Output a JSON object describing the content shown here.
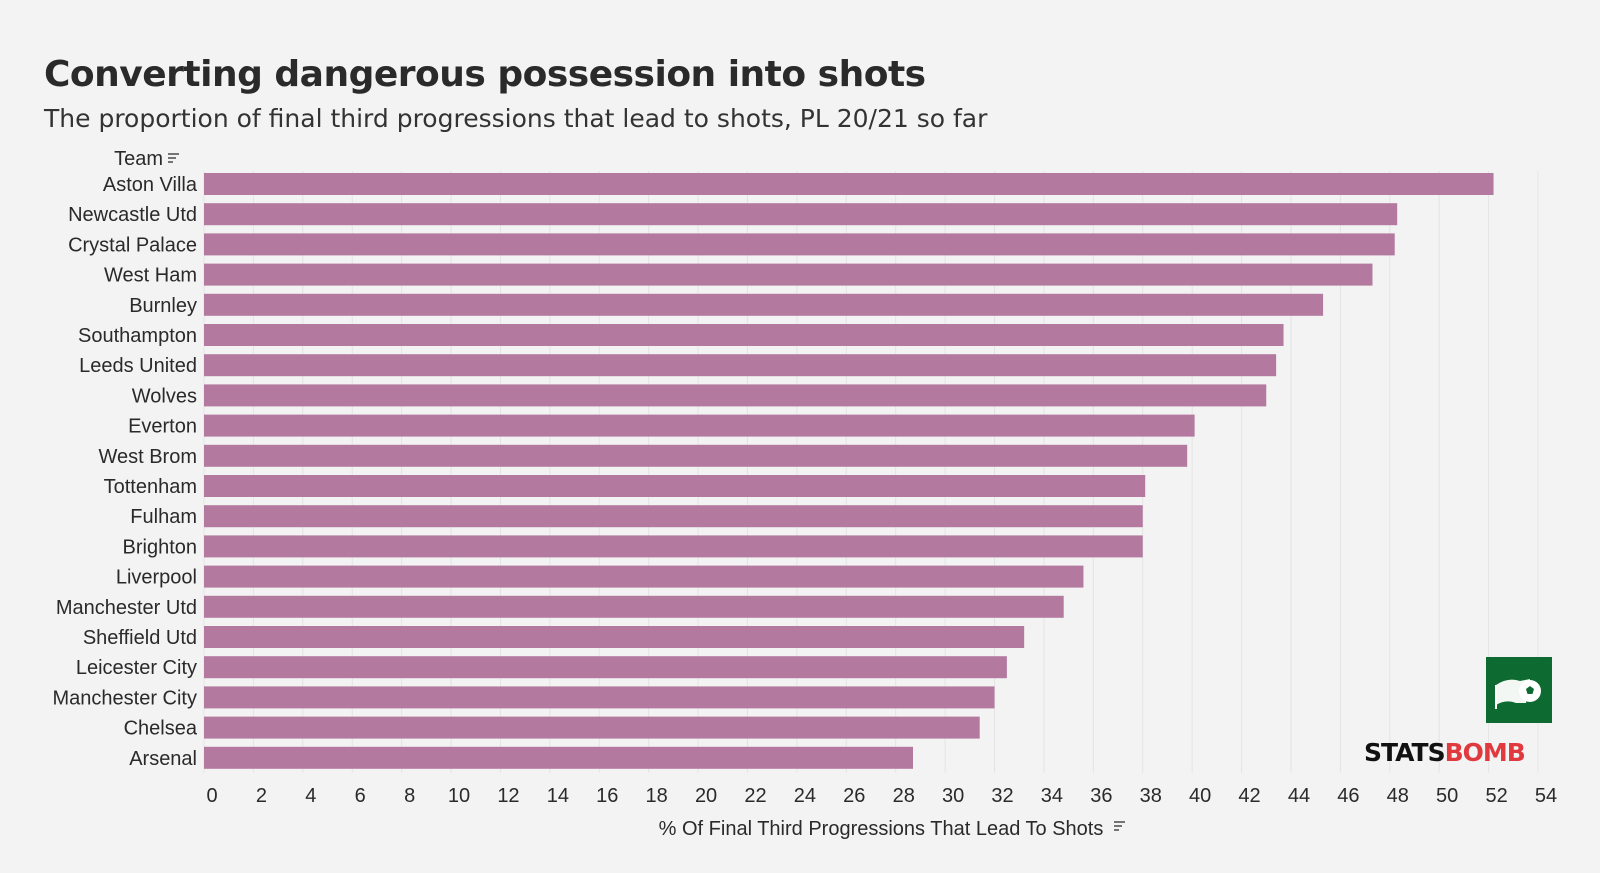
{
  "title": "Converting dangerous possession into shots",
  "subtitle": "The proportion of final third progressions that lead to shots, PL 20/21 so far",
  "brand": {
    "name_part1": "STATS",
    "name_part2": "BOMB"
  },
  "colors": {
    "bar": "#b3799f",
    "background": "#f3f3f3",
    "logo_green": "#0d6b31",
    "brand_red": "#e0393e"
  },
  "icons": {
    "sort": "sort-icon",
    "logo": "statsbomb-flag-ball-logo"
  },
  "chart_data": {
    "type": "bar",
    "orientation": "horizontal",
    "y_header": "Team",
    "xlabel": "% Of Final Third Progressions That Lead To Shots",
    "xlim": [
      0,
      54
    ],
    "xticks": [
      0,
      2,
      4,
      6,
      8,
      10,
      12,
      14,
      16,
      18,
      20,
      22,
      24,
      26,
      28,
      30,
      32,
      34,
      36,
      38,
      40,
      42,
      44,
      46,
      48,
      50,
      52,
      54
    ],
    "grid": "vertical",
    "categories": [
      "Aston Villa",
      "Newcastle Utd",
      "Crystal Palace",
      "West Ham",
      "Burnley",
      "Southampton",
      "Leeds United",
      "Wolves",
      "Everton",
      "West Brom",
      "Tottenham",
      "Fulham",
      "Brighton",
      "Liverpool",
      "Manchester Utd",
      "Sheffield Utd",
      "Leicester City",
      "Manchester City",
      "Chelsea",
      "Arsenal"
    ],
    "values": [
      52.2,
      48.3,
      48.2,
      47.3,
      45.3,
      43.7,
      43.4,
      43.0,
      40.1,
      39.8,
      38.1,
      38.0,
      38.0,
      35.6,
      34.8,
      33.2,
      32.5,
      32.0,
      31.4,
      28.7
    ]
  }
}
